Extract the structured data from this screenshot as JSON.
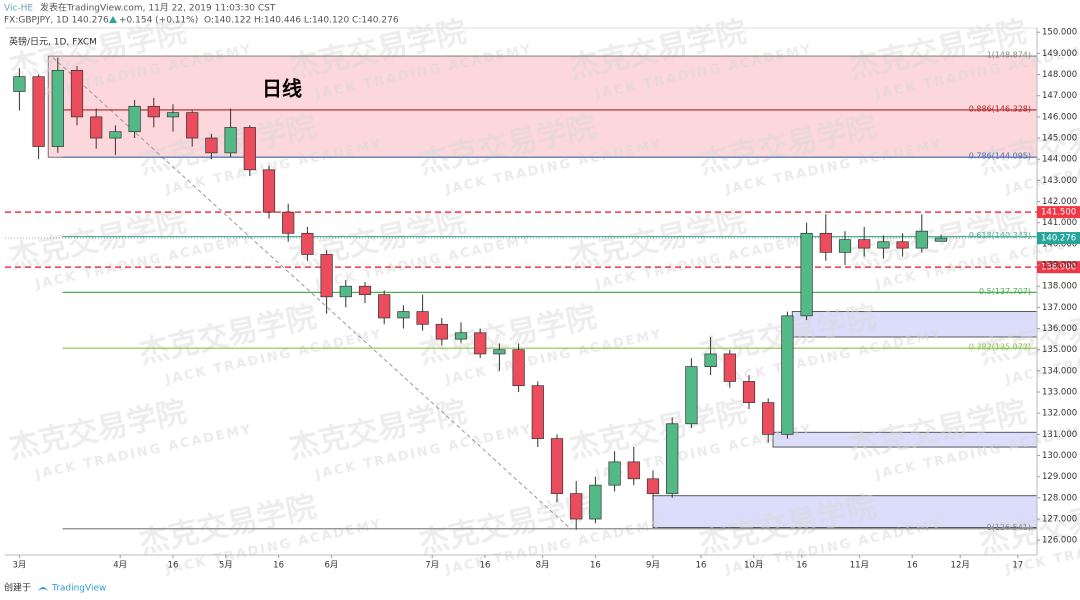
{
  "chart_data": {
    "type": "candlestick",
    "header": {
      "author": "Vic-HE",
      "published": "发表在TradingView.com, 11月 22, 2019 11:03:30 CST",
      "symbol": "FX:GBPJPY, 1D 140.276",
      "change": "+0.154 (+0.11%)",
      "ohlc": "O:140.122 H:140.446 L:140.120 C:140.276"
    },
    "legend_title": "英镑/日元, 1D, FXCM",
    "annotation": "日线",
    "watermark": {
      "cn": "杰克交易学院",
      "en": "JACK TRADING ACADEMY"
    },
    "footer": {
      "created": "创建于",
      "brand": "TradingView"
    },
    "up_color": "#53b987",
    "down_color": "#eb4d5c",
    "candles": {
      "x": [
        0,
        4,
        8,
        12,
        16,
        20,
        24,
        28,
        32,
        36,
        40,
        44,
        48,
        52,
        56,
        60,
        64,
        68,
        72,
        76,
        80,
        84,
        88,
        92,
        96,
        100,
        104,
        108,
        112,
        116,
        120,
        124,
        128,
        132,
        136,
        140,
        144,
        148,
        152,
        156,
        160,
        164,
        168,
        172,
        176,
        180,
        184,
        188,
        192
      ],
      "open": [
        147.2,
        147.9,
        144.6,
        148.2,
        146.0,
        145.0,
        145.3,
        146.5,
        146.0,
        146.2,
        145.0,
        144.3,
        145.5,
        143.5,
        141.5,
        140.5,
        139.5,
        137.5,
        138.0,
        137.6,
        136.5,
        136.8,
        136.2,
        135.5,
        135.8,
        134.8,
        135.0,
        133.3,
        130.8,
        128.2,
        127.0,
        128.6,
        129.7,
        128.9,
        128.2,
        131.5,
        134.2,
        134.8,
        133.5,
        132.5,
        131.0,
        136.6,
        140.5,
        139.6,
        140.2,
        139.8,
        140.1,
        139.8,
        140.122
      ],
      "high": [
        148.3,
        148.0,
        148.8,
        148.4,
        146.4,
        145.6,
        146.8,
        146.9,
        146.6,
        146.3,
        145.2,
        146.4,
        145.6,
        143.7,
        141.9,
        140.8,
        139.7,
        138.3,
        138.2,
        137.8,
        137.1,
        137.6,
        136.5,
        136.3,
        136.0,
        135.3,
        135.3,
        133.5,
        131.0,
        128.8,
        129.0,
        130.2,
        130.4,
        129.3,
        131.8,
        134.6,
        135.6,
        135.0,
        133.8,
        132.7,
        136.8,
        141.0,
        141.4,
        140.6,
        140.8,
        140.4,
        140.5,
        141.4,
        140.446
      ],
      "low": [
        146.3,
        144.0,
        144.3,
        145.6,
        144.5,
        144.2,
        145.0,
        145.5,
        145.3,
        144.6,
        144.0,
        144.1,
        143.2,
        141.2,
        140.1,
        139.2,
        136.7,
        137.0,
        137.2,
        136.2,
        136.0,
        135.9,
        135.2,
        135.3,
        134.6,
        134.0,
        133.0,
        130.4,
        127.8,
        126.5,
        126.8,
        128.3,
        128.6,
        127.9,
        128.0,
        131.3,
        133.8,
        133.2,
        132.2,
        130.6,
        130.8,
        136.4,
        139.2,
        139.0,
        139.4,
        139.3,
        139.4,
        139.6,
        140.12
      ],
      "close": [
        147.9,
        144.6,
        148.2,
        146.0,
        145.0,
        145.3,
        146.5,
        146.0,
        146.2,
        145.0,
        144.3,
        145.5,
        143.5,
        141.5,
        140.5,
        139.5,
        137.5,
        138.0,
        137.6,
        136.5,
        136.8,
        136.2,
        135.5,
        135.8,
        134.8,
        135.0,
        133.3,
        130.8,
        128.2,
        127.0,
        128.6,
        129.7,
        128.9,
        128.2,
        131.5,
        134.2,
        134.8,
        133.5,
        132.5,
        131.0,
        136.6,
        140.5,
        139.6,
        140.2,
        139.8,
        140.1,
        139.8,
        140.6,
        140.276
      ]
    },
    "fib_levels": [
      {
        "value": 148.874,
        "label": "1(148.874)",
        "color": "#888888"
      },
      {
        "value": 146.328,
        "label": "0.886(146.328)",
        "color": "#b22222"
      },
      {
        "value": 144.095,
        "label": "0.786(144.095)",
        "color": "#4a6fb5"
      },
      {
        "value": 140.343,
        "label": "0.618(140.343)",
        "color": "#4caf9a"
      },
      {
        "value": 137.707,
        "label": "0.5(137.707)",
        "color": "#4caf50"
      },
      {
        "value": 135.072,
        "label": "0.382(135.072)",
        "color": "#8bc34a"
      },
      {
        "value": 126.541,
        "label": "0(126.541)",
        "color": "#888888"
      }
    ],
    "fib_start": 9,
    "price_lines": [
      {
        "value": 141.5,
        "label": "141.500",
        "color": "#f23645"
      },
      {
        "value": 138.9,
        "label": "138.900",
        "color": "#f23645"
      }
    ],
    "last_price": {
      "value": 140.276,
      "label": "140.276",
      "color": "#26a69a"
    },
    "zones": [
      {
        "x": 6,
        "high": 148.874,
        "low": 144.095,
        "color": "#fcd7db"
      },
      {
        "x": 161,
        "high": 136.8,
        "low": 135.6,
        "color": "#dcdcfb"
      },
      {
        "x": 157,
        "high": 131.1,
        "low": 130.4,
        "color": "#dcdcfb"
      },
      {
        "x": 132,
        "high": 128.1,
        "low": 126.6,
        "color": "#dcdcfb"
      }
    ],
    "trendline": {
      "x": [
        7,
        115
      ],
      "y": [
        148.8,
        126.5
      ]
    },
    "xlim": [
      -3,
      212
    ],
    "ylim": [
      125.3,
      150.2
    ],
    "xticks": [
      {
        "value": 0,
        "label": "3月"
      },
      {
        "value": 21,
        "label": "4月"
      },
      {
        "value": 32,
        "label": "16"
      },
      {
        "value": 43,
        "label": "5月"
      },
      {
        "value": 54,
        "label": "16"
      },
      {
        "value": 65,
        "label": "6月"
      },
      {
        "value": 86,
        "label": "7月"
      },
      {
        "value": 97,
        "label": "16"
      },
      {
        "value": 109,
        "label": "8月"
      },
      {
        "value": 120,
        "label": "16"
      },
      {
        "value": 132,
        "label": "9月"
      },
      {
        "value": 142,
        "label": "16"
      },
      {
        "value": 153,
        "label": "10月"
      },
      {
        "value": 163,
        "label": "16"
      },
      {
        "value": 175,
        "label": "11月"
      },
      {
        "value": 186,
        "label": "16"
      },
      {
        "value": 196,
        "label": "12月"
      },
      {
        "value": 208,
        "label": "17"
      }
    ],
    "yticks": [
      {
        "value": 126,
        "label": "126.000"
      },
      {
        "value": 127,
        "label": "127.000"
      },
      {
        "value": 128,
        "label": "128.000"
      },
      {
        "value": 129,
        "label": "129.000"
      },
      {
        "value": 130,
        "label": "130.000"
      },
      {
        "value": 131,
        "label": "131.000"
      },
      {
        "value": 132,
        "label": "132.000"
      },
      {
        "value": 133,
        "label": "133.000"
      },
      {
        "value": 134,
        "label": "134.000"
      },
      {
        "value": 135,
        "label": "135.000"
      },
      {
        "value": 136,
        "label": "136.000"
      },
      {
        "value": 137,
        "label": "137.000"
      },
      {
        "value": 138,
        "label": "138.000"
      },
      {
        "value": 139,
        "label": "139.000"
      },
      {
        "value": 140,
        "label": "140.000"
      },
      {
        "value": 141,
        "label": "141.000"
      },
      {
        "value": 142,
        "label": "142.000"
      },
      {
        "value": 143,
        "label": "143.000"
      },
      {
        "value": 144,
        "label": "144.000"
      },
      {
        "value": 145,
        "label": "145.000"
      },
      {
        "value": 146,
        "label": "146.000"
      },
      {
        "value": 147,
        "label": "147.000"
      },
      {
        "value": 148,
        "label": "148.000"
      },
      {
        "value": 149,
        "label": "149.000"
      },
      {
        "value": 150,
        "label": "150.000"
      }
    ]
  }
}
